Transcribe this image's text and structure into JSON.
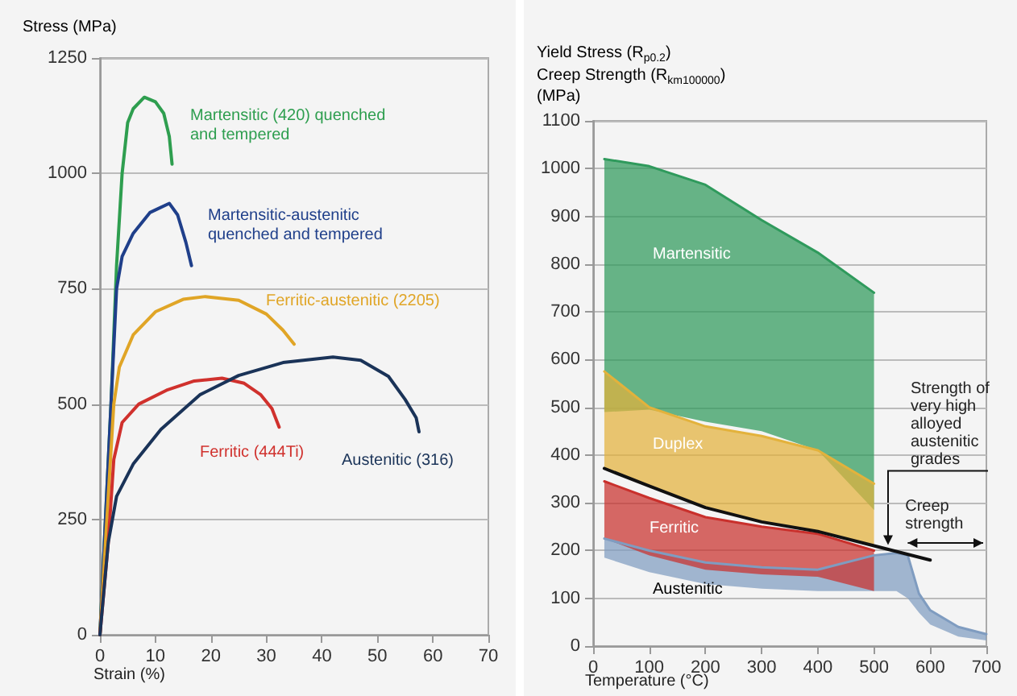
{
  "chart_data": [
    {
      "type": "line",
      "xlabel": "Strain (%)",
      "ylabel": "Stress (MPa)",
      "xlim": [
        0,
        70
      ],
      "ylim": [
        0,
        1250
      ],
      "xticks": [
        0,
        10,
        20,
        30,
        40,
        50,
        60,
        70
      ],
      "yticks": [
        0,
        250,
        500,
        750,
        1000,
        1250
      ],
      "grid": "y",
      "marker": "none",
      "series": [
        {
          "name": "Martensitic (420) quenched and tempered",
          "color": "#2e9e4f",
          "x": [
            0,
            2,
            3,
            4,
            5,
            6,
            8,
            10,
            11.5,
            12.5,
            13
          ],
          "values": [
            0,
            500,
            800,
            1000,
            1110,
            1140,
            1165,
            1155,
            1130,
            1080,
            1020
          ]
        },
        {
          "name": "Martensitic-austenitic quenched and tempered",
          "color": "#1f3f8a",
          "x": [
            0,
            2,
            3,
            4,
            6,
            9,
            12.5,
            14,
            15.5,
            16.5
          ],
          "values": [
            0,
            500,
            750,
            820,
            870,
            915,
            935,
            910,
            850,
            800
          ]
        },
        {
          "name": "Ferritic-austenitic (2205)",
          "color": "#e0a526",
          "x": [
            0,
            1.5,
            2.5,
            3.5,
            6,
            10,
            15,
            19,
            25,
            30,
            33,
            35
          ],
          "values": [
            0,
            300,
            500,
            580,
            650,
            700,
            727,
            733,
            725,
            695,
            660,
            630
          ]
        },
        {
          "name": "Ferritic (444Ti)",
          "color": "#d0312d",
          "x": [
            0,
            1.5,
            2.5,
            4,
            7,
            12,
            17,
            22,
            26,
            29,
            31,
            32.3
          ],
          "values": [
            0,
            200,
            380,
            460,
            500,
            530,
            550,
            556,
            545,
            520,
            490,
            450
          ]
        },
        {
          "name": "Austenitic (316)",
          "color": "#1a3358",
          "x": [
            0,
            1.5,
            3,
            6,
            11,
            18,
            25,
            33,
            42,
            47,
            52,
            55,
            57,
            57.5
          ],
          "values": [
            0,
            200,
            300,
            370,
            445,
            520,
            562,
            590,
            602,
            595,
            560,
            510,
            470,
            440
          ]
        }
      ]
    },
    {
      "type": "line",
      "xlabel": "Temperature (°C)",
      "ylabel": "Yield Stress (R$_{p0.2}$)\nCreep Strength (R$_{km100000}$)\n(MPa)",
      "xlim": [
        0,
        700
      ],
      "ylim": [
        0,
        1100
      ],
      "xticks": [
        0,
        100,
        200,
        300,
        400,
        500,
        600,
        700
      ],
      "yticks": [
        0,
        100,
        200,
        300,
        400,
        500,
        600,
        700,
        800,
        900,
        1000,
        1100
      ],
      "grid": "y",
      "marker": "none",
      "annotations": [
        {
          "text": "Strength of very high alloyed austenitic grades",
          "x": 525,
          "y": 205
        },
        "Creep strength"
      ],
      "series": [
        {
          "name": "Martensitic",
          "color": "#2f9a5c",
          "x": [
            20,
            100,
            200,
            300,
            400,
            500
          ],
          "values": [
            1020,
            1005,
            966,
            892,
            824,
            740
          ],
          "upper": [
            1020,
            1005,
            966,
            892,
            824,
            740
          ],
          "lower": [
            490,
            495,
            470,
            450,
            410,
            285
          ]
        },
        {
          "name": "Duplex",
          "color": "#e3b23c",
          "x": [
            20,
            100,
            200,
            300,
            400,
            500
          ],
          "values": [
            575,
            500,
            460,
            440,
            410,
            340
          ],
          "upper": [
            575,
            500,
            460,
            440,
            410,
            340
          ],
          "lower": [
            372,
            335,
            290,
            260,
            240,
            210
          ]
        },
        {
          "name": "Austenitic",
          "color": "#7f9cc0",
          "x": [
            20,
            100,
            200,
            300,
            400,
            500,
            540,
            560,
            580,
            600,
            650,
            700
          ],
          "values": [
            225,
            200,
            175,
            165,
            160,
            190,
            195,
            190,
            110,
            75,
            40,
            25
          ],
          "upper": [
            225,
            200,
            175,
            165,
            160,
            190,
            195,
            190,
            110,
            75,
            40,
            25
          ],
          "lower": [
            185,
            155,
            130,
            120,
            115,
            115,
            115,
            100,
            70,
            45,
            20,
            12
          ]
        },
        {
          "name": "Ferritic",
          "color": "#c9302c",
          "x": [
            20,
            100,
            200,
            300,
            400,
            500
          ],
          "values": [
            345,
            310,
            270,
            250,
            235,
            200
          ],
          "upper": [
            345,
            310,
            270,
            250,
            235,
            200
          ],
          "lower": [
            225,
            190,
            160,
            150,
            145,
            115
          ]
        },
        {
          "color": "#111111",
          "x": [
            20,
            100,
            200,
            300,
            400,
            500,
            600
          ],
          "values": [
            372,
            335,
            290,
            260,
            240,
            210,
            180
          ]
        }
      ]
    }
  ]
}
